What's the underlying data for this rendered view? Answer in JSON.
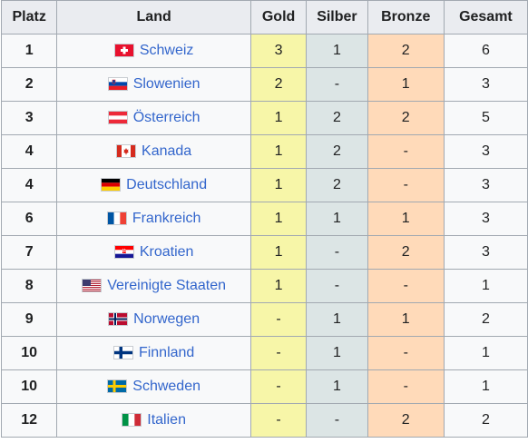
{
  "headers": {
    "platz": "Platz",
    "land": "Land",
    "gold": "Gold",
    "silber": "Silber",
    "bronze": "Bronze",
    "gesamt": "Gesamt"
  },
  "rows": [
    {
      "rank": "1",
      "country": "Schweiz",
      "flag": "switzerland-flag-icon",
      "gold": "3",
      "silver": "1",
      "bronze": "2",
      "total": "6"
    },
    {
      "rank": "2",
      "country": "Slowenien",
      "flag": "slovenia-flag-icon",
      "gold": "2",
      "silver": "-",
      "bronze": "1",
      "total": "3"
    },
    {
      "rank": "3",
      "country": "Österreich",
      "flag": "austria-flag-icon",
      "gold": "1",
      "silver": "2",
      "bronze": "2",
      "total": "5"
    },
    {
      "rank": "4",
      "country": "Kanada",
      "flag": "canada-flag-icon",
      "gold": "1",
      "silver": "2",
      "bronze": "-",
      "total": "3"
    },
    {
      "rank": "4",
      "country": "Deutschland",
      "flag": "germany-flag-icon",
      "gold": "1",
      "silver": "2",
      "bronze": "-",
      "total": "3"
    },
    {
      "rank": "6",
      "country": "Frankreich",
      "flag": "france-flag-icon",
      "gold": "1",
      "silver": "1",
      "bronze": "1",
      "total": "3"
    },
    {
      "rank": "7",
      "country": "Kroatien",
      "flag": "croatia-flag-icon",
      "gold": "1",
      "silver": "-",
      "bronze": "2",
      "total": "3"
    },
    {
      "rank": "8",
      "country": "Vereinigte Staaten",
      "flag": "united-states-flag-icon",
      "gold": "1",
      "silver": "-",
      "bronze": "-",
      "total": "1"
    },
    {
      "rank": "9",
      "country": "Norwegen",
      "flag": "norway-flag-icon",
      "gold": "-",
      "silver": "1",
      "bronze": "1",
      "total": "2"
    },
    {
      "rank": "10",
      "country": "Finnland",
      "flag": "finland-flag-icon",
      "gold": "-",
      "silver": "1",
      "bronze": "-",
      "total": "1"
    },
    {
      "rank": "10",
      "country": "Schweden",
      "flag": "sweden-flag-icon",
      "gold": "-",
      "silver": "1",
      "bronze": "-",
      "total": "1"
    },
    {
      "rank": "12",
      "country": "Italien",
      "flag": "italy-flag-icon",
      "gold": "-",
      "silver": "-",
      "bronze": "2",
      "total": "2"
    }
  ],
  "colors": {
    "gold_cell": "#f7f6a8",
    "silver_cell": "#dce5e5",
    "bronze_cell": "#ffdab9",
    "header_bg": "#eaecf0",
    "link": "#3366cc"
  }
}
